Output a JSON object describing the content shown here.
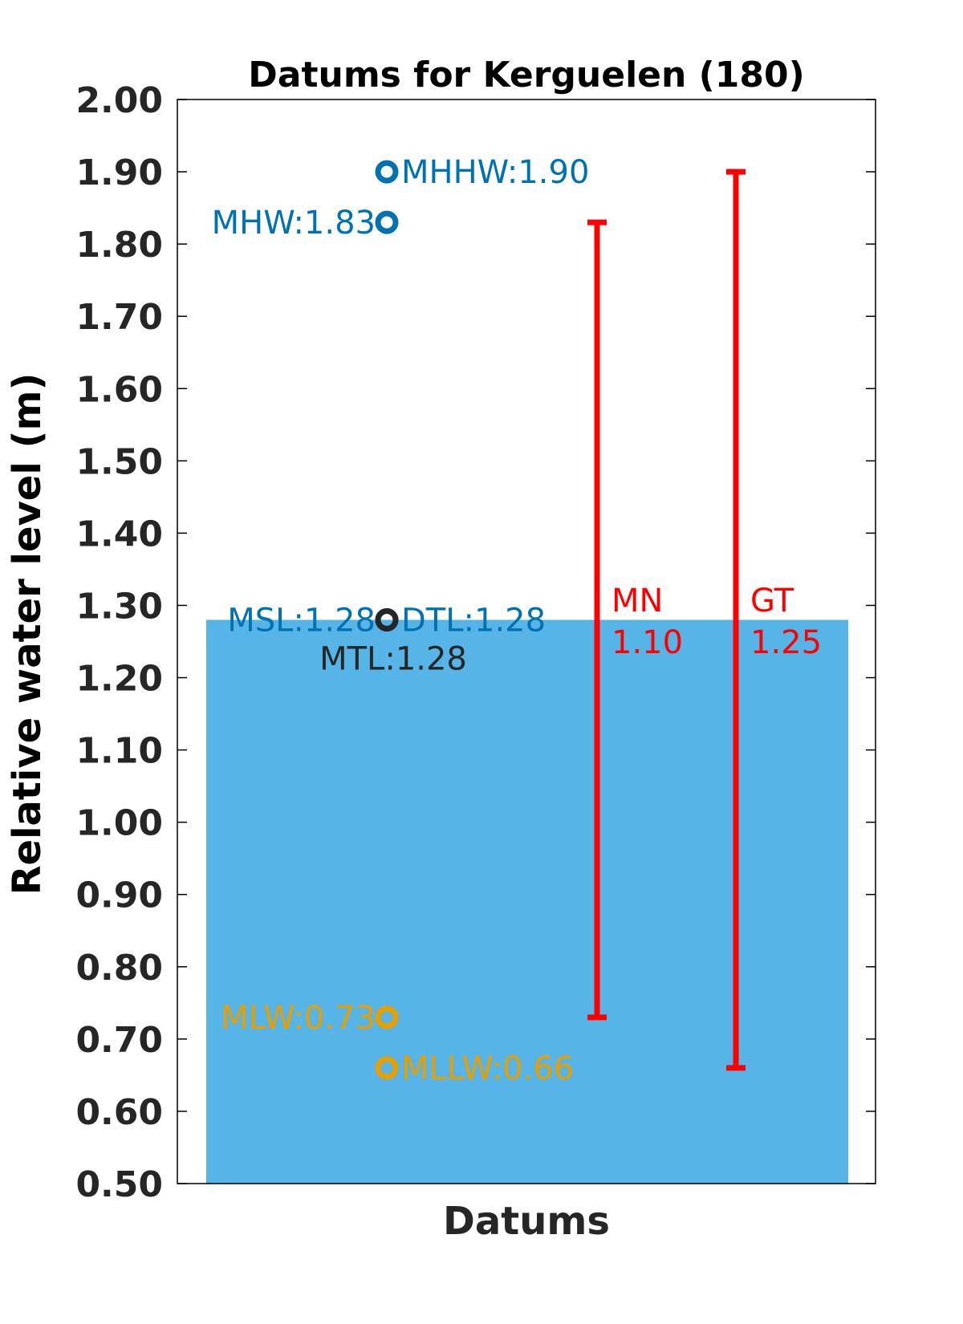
{
  "chart_data": {
    "type": "bar",
    "title": "Datums for Kerguelen (180)",
    "xlabel": "Datums",
    "ylabel": "Relative water level (m)",
    "ylim": [
      0.5,
      2.0
    ],
    "yticks": [
      "0.50",
      "0.60",
      "0.70",
      "0.80",
      "0.90",
      "1.00",
      "1.10",
      "1.20",
      "1.30",
      "1.40",
      "1.50",
      "1.60",
      "1.70",
      "1.80",
      "1.90",
      "2.00"
    ],
    "bar": {
      "value": 1.28,
      "color": "#56b4e6"
    },
    "datums": [
      {
        "name": "MHHW",
        "value": 1.9,
        "label": "MHHW:1.90",
        "color": "#0072b2",
        "side": "right"
      },
      {
        "name": "MHW",
        "value": 1.83,
        "label": "MHW:1.83",
        "color": "#0072b2",
        "side": "left"
      },
      {
        "name": "DTL",
        "value": 1.28,
        "label": "DTL:1.28",
        "color": "#0072b2",
        "side": "right"
      },
      {
        "name": "MSL",
        "value": 1.28,
        "label": "MSL:1.28",
        "color": "#0072b2",
        "side": "left"
      },
      {
        "name": "MTL",
        "value": 1.28,
        "label": "MTL:1.28",
        "color": "#262626",
        "side": "below"
      },
      {
        "name": "MLW",
        "value": 0.73,
        "label": "MLW:0.73",
        "color": "#e69f00",
        "side": "left"
      },
      {
        "name": "MLLW",
        "value": 0.66,
        "label": "MLLW:0.66",
        "color": "#e69f00",
        "side": "right"
      }
    ],
    "ranges": [
      {
        "name": "MN",
        "label": "MN",
        "value_label": "1.10",
        "low": 0.73,
        "high": 1.83,
        "color": "#ff0000"
      },
      {
        "name": "GT",
        "label": "GT",
        "value_label": "1.25",
        "low": 0.66,
        "high": 1.9,
        "color": "#ff0000"
      }
    ],
    "grid": false,
    "legend": "none"
  }
}
